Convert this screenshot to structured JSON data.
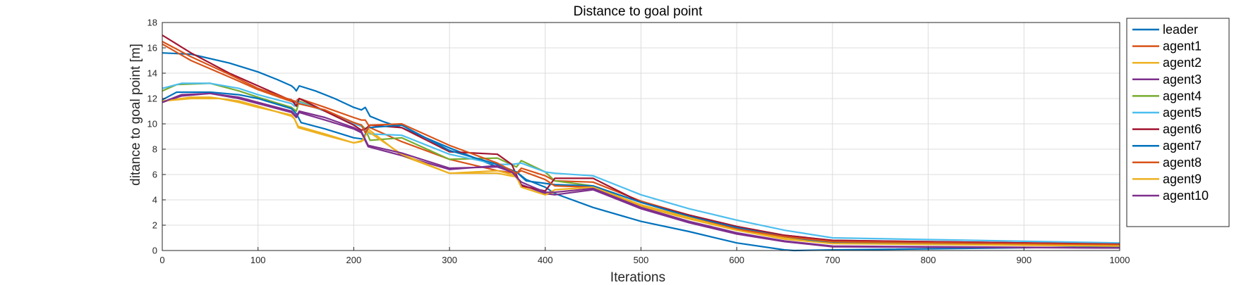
{
  "chart_data": {
    "type": "line",
    "title": "Distance to goal point",
    "xlabel": "Iterations",
    "ylabel": "ditance to goal point [m]",
    "xlim": [
      0,
      1000
    ],
    "ylim": [
      0,
      18
    ],
    "xticks": [
      "0",
      "100",
      "200",
      "300",
      "400",
      "500",
      "600",
      "700",
      "800",
      "900",
      "1000"
    ],
    "yticks": [
      "0",
      "2",
      "4",
      "6",
      "8",
      "10",
      "12",
      "14",
      "16",
      "18"
    ],
    "grid": true,
    "legend_position": "outside-right",
    "series": [
      {
        "name": "leader",
        "color": "#0072BD",
        "points": [
          [
            0,
            15.6
          ],
          [
            30,
            15.5
          ],
          [
            70,
            14.8
          ],
          [
            100,
            14.1
          ],
          [
            120,
            13.5
          ],
          [
            135,
            13.0
          ],
          [
            138,
            12.8
          ],
          [
            140,
            12.6
          ],
          [
            143,
            13.0
          ],
          [
            160,
            12.6
          ],
          [
            180,
            12.0
          ],
          [
            200,
            11.3
          ],
          [
            208,
            11.1
          ],
          [
            212,
            11.3
          ],
          [
            217,
            10.6
          ],
          [
            230,
            10.2
          ],
          [
            250,
            9.7
          ],
          [
            300,
            8.1
          ],
          [
            350,
            6.6
          ],
          [
            370,
            6.2
          ],
          [
            380,
            5.6
          ],
          [
            400,
            5.0
          ],
          [
            410,
            4.5
          ],
          [
            450,
            3.4
          ],
          [
            500,
            2.3
          ],
          [
            550,
            1.5
          ],
          [
            600,
            0.6
          ],
          [
            650,
            0.05
          ],
          [
            660,
            0.0
          ],
          [
            700,
            0.05
          ],
          [
            1000,
            0.3
          ]
        ]
      },
      {
        "name": "agent1",
        "color": "#D95319",
        "points": [
          [
            0,
            16.3
          ],
          [
            30,
            15.0
          ],
          [
            70,
            13.7
          ],
          [
            100,
            12.7
          ],
          [
            130,
            11.9
          ],
          [
            138,
            11.7
          ],
          [
            143,
            12.0
          ],
          [
            170,
            11.3
          ],
          [
            200,
            10.5
          ],
          [
            208,
            10.3
          ],
          [
            212,
            10.3
          ],
          [
            217,
            9.7
          ],
          [
            250,
            8.6
          ],
          [
            300,
            7.2
          ],
          [
            350,
            6.3
          ],
          [
            370,
            6.1
          ],
          [
            375,
            6.5
          ],
          [
            400,
            5.9
          ],
          [
            410,
            5.5
          ],
          [
            450,
            5.4
          ],
          [
            500,
            3.9
          ],
          [
            550,
            2.8
          ],
          [
            600,
            1.9
          ],
          [
            650,
            1.2
          ],
          [
            700,
            0.8
          ],
          [
            1000,
            0.5
          ]
        ]
      },
      {
        "name": "agent2",
        "color": "#EDB120",
        "points": [
          [
            0,
            11.8
          ],
          [
            30,
            12.1
          ],
          [
            50,
            12.1
          ],
          [
            80,
            11.8
          ],
          [
            100,
            11.4
          ],
          [
            135,
            10.6
          ],
          [
            138,
            10.4
          ],
          [
            142,
            9.8
          ],
          [
            170,
            9.2
          ],
          [
            200,
            8.5
          ],
          [
            210,
            8.7
          ],
          [
            215,
            9.6
          ],
          [
            250,
            7.5
          ],
          [
            300,
            6.1
          ],
          [
            350,
            6.3
          ],
          [
            370,
            5.9
          ],
          [
            375,
            5.0
          ],
          [
            400,
            4.4
          ],
          [
            410,
            4.6
          ],
          [
            450,
            4.9
          ],
          [
            500,
            3.5
          ],
          [
            550,
            2.5
          ],
          [
            600,
            1.6
          ],
          [
            650,
            1.0
          ],
          [
            700,
            0.6
          ],
          [
            1000,
            0.4
          ]
        ]
      },
      {
        "name": "agent3",
        "color": "#7E2F8E",
        "points": [
          [
            0,
            11.7
          ],
          [
            20,
            12.2
          ],
          [
            50,
            12.4
          ],
          [
            80,
            12.0
          ],
          [
            100,
            11.6
          ],
          [
            135,
            10.9
          ],
          [
            140,
            10.5
          ],
          [
            143,
            10.9
          ],
          [
            170,
            10.3
          ],
          [
            200,
            9.6
          ],
          [
            208,
            9.3
          ],
          [
            215,
            8.2
          ],
          [
            250,
            7.5
          ],
          [
            300,
            6.4
          ],
          [
            350,
            6.7
          ],
          [
            365,
            6.3
          ],
          [
            375,
            5.2
          ],
          [
            400,
            4.5
          ],
          [
            410,
            4.4
          ],
          [
            450,
            4.8
          ],
          [
            500,
            3.3
          ],
          [
            550,
            2.2
          ],
          [
            600,
            1.3
          ],
          [
            650,
            0.7
          ],
          [
            700,
            0.3
          ],
          [
            1000,
            0.2
          ]
        ]
      },
      {
        "name": "agent4",
        "color": "#77AC30",
        "points": [
          [
            0,
            12.6
          ],
          [
            15,
            13.1
          ],
          [
            50,
            13.2
          ],
          [
            80,
            12.6
          ],
          [
            100,
            12.1
          ],
          [
            135,
            11.3
          ],
          [
            140,
            11.0
          ],
          [
            143,
            11.8
          ],
          [
            170,
            11.0
          ],
          [
            200,
            10.1
          ],
          [
            208,
            9.9
          ],
          [
            212,
            9.6
          ],
          [
            217,
            8.7
          ],
          [
            250,
            8.9
          ],
          [
            300,
            7.2
          ],
          [
            350,
            7.3
          ],
          [
            370,
            6.6
          ],
          [
            375,
            7.1
          ],
          [
            400,
            6.2
          ],
          [
            410,
            5.5
          ],
          [
            450,
            5.1
          ],
          [
            500,
            3.8
          ],
          [
            550,
            2.7
          ],
          [
            600,
            1.8
          ],
          [
            650,
            1.1
          ],
          [
            700,
            0.7
          ],
          [
            1000,
            0.5
          ]
        ]
      },
      {
        "name": "agent5",
        "color": "#4DBEEE",
        "points": [
          [
            0,
            12.8
          ],
          [
            20,
            13.2
          ],
          [
            50,
            13.2
          ],
          [
            80,
            12.8
          ],
          [
            100,
            12.3
          ],
          [
            135,
            11.6
          ],
          [
            138,
            11.4
          ],
          [
            140,
            11.8
          ],
          [
            170,
            11.0
          ],
          [
            200,
            10.0
          ],
          [
            208,
            9.8
          ],
          [
            212,
            9.5
          ],
          [
            217,
            9.2
          ],
          [
            250,
            9.1
          ],
          [
            300,
            7.6
          ],
          [
            350,
            6.8
          ],
          [
            365,
            6.8
          ],
          [
            375,
            6.9
          ],
          [
            400,
            6.2
          ],
          [
            410,
            6.1
          ],
          [
            450,
            5.9
          ],
          [
            500,
            4.4
          ],
          [
            550,
            3.3
          ],
          [
            600,
            2.4
          ],
          [
            650,
            1.6
          ],
          [
            700,
            1.0
          ],
          [
            1000,
            0.6
          ]
        ]
      },
      {
        "name": "agent6",
        "color": "#A2142F",
        "points": [
          [
            0,
            17.0
          ],
          [
            30,
            15.6
          ],
          [
            70,
            14.0
          ],
          [
            100,
            13.0
          ],
          [
            130,
            12.0
          ],
          [
            135,
            11.9
          ],
          [
            140,
            11.4
          ],
          [
            143,
            12.0
          ],
          [
            170,
            11.0
          ],
          [
            200,
            9.9
          ],
          [
            208,
            9.5
          ],
          [
            212,
            9.6
          ],
          [
            217,
            9.9
          ],
          [
            250,
            9.7
          ],
          [
            300,
            7.8
          ],
          [
            350,
            7.6
          ],
          [
            365,
            6.8
          ],
          [
            375,
            5.1
          ],
          [
            400,
            4.7
          ],
          [
            410,
            5.7
          ],
          [
            450,
            5.7
          ],
          [
            500,
            3.8
          ],
          [
            550,
            2.8
          ],
          [
            600,
            1.9
          ],
          [
            650,
            1.2
          ],
          [
            700,
            0.8
          ],
          [
            1000,
            0.5
          ]
        ]
      },
      {
        "name": "agent7",
        "color": "#0072BD",
        "points": [
          [
            0,
            11.9
          ],
          [
            15,
            12.5
          ],
          [
            50,
            12.5
          ],
          [
            80,
            12.3
          ],
          [
            100,
            12.0
          ],
          [
            135,
            11.2
          ],
          [
            140,
            10.8
          ],
          [
            145,
            10.1
          ],
          [
            170,
            9.6
          ],
          [
            200,
            8.9
          ],
          [
            210,
            8.8
          ],
          [
            215,
            9.7
          ],
          [
            250,
            9.9
          ],
          [
            300,
            7.9
          ],
          [
            350,
            6.8
          ],
          [
            370,
            6.2
          ],
          [
            380,
            5.5
          ],
          [
            400,
            5.3
          ],
          [
            410,
            5.2
          ],
          [
            450,
            5.1
          ],
          [
            500,
            3.8
          ],
          [
            550,
            2.7
          ],
          [
            600,
            1.8
          ],
          [
            650,
            1.1
          ],
          [
            700,
            0.6
          ],
          [
            1000,
            0.4
          ]
        ]
      },
      {
        "name": "agent8",
        "color": "#D95319",
        "points": [
          [
            0,
            16.5
          ],
          [
            30,
            15.3
          ],
          [
            70,
            13.9
          ],
          [
            100,
            12.8
          ],
          [
            130,
            12.0
          ],
          [
            138,
            11.8
          ],
          [
            142,
            11.6
          ],
          [
            170,
            11.1
          ],
          [
            200,
            10.1
          ],
          [
            208,
            9.9
          ],
          [
            212,
            9.3
          ],
          [
            217,
            9.9
          ],
          [
            250,
            10.0
          ],
          [
            300,
            8.3
          ],
          [
            350,
            6.9
          ],
          [
            370,
            6.1
          ],
          [
            375,
            6.3
          ],
          [
            400,
            5.6
          ],
          [
            410,
            5.1
          ],
          [
            450,
            5.0
          ],
          [
            500,
            3.6
          ],
          [
            550,
            2.6
          ],
          [
            600,
            1.7
          ],
          [
            650,
            1.1
          ],
          [
            700,
            0.7
          ],
          [
            1000,
            0.45
          ]
        ]
      },
      {
        "name": "agent9",
        "color": "#EDB120",
        "points": [
          [
            0,
            11.8
          ],
          [
            30,
            12.0
          ],
          [
            60,
            12.0
          ],
          [
            80,
            11.7
          ],
          [
            100,
            11.3
          ],
          [
            135,
            10.7
          ],
          [
            138,
            10.4
          ],
          [
            142,
            9.7
          ],
          [
            170,
            9.1
          ],
          [
            200,
            8.5
          ],
          [
            208,
            8.6
          ],
          [
            215,
            9.4
          ],
          [
            250,
            7.6
          ],
          [
            300,
            6.1
          ],
          [
            350,
            6.1
          ],
          [
            370,
            5.8
          ],
          [
            375,
            5.0
          ],
          [
            400,
            4.4
          ],
          [
            410,
            4.8
          ],
          [
            450,
            5.0
          ],
          [
            500,
            3.6
          ],
          [
            550,
            2.6
          ],
          [
            600,
            1.6
          ],
          [
            650,
            0.9
          ],
          [
            700,
            0.55
          ],
          [
            1000,
            0.35
          ]
        ]
      },
      {
        "name": "agent10",
        "color": "#7E2F8E",
        "points": [
          [
            0,
            11.7
          ],
          [
            20,
            12.3
          ],
          [
            50,
            12.4
          ],
          [
            80,
            12.1
          ],
          [
            100,
            11.7
          ],
          [
            135,
            11.0
          ],
          [
            140,
            10.6
          ],
          [
            143,
            11.0
          ],
          [
            170,
            10.5
          ],
          [
            200,
            9.7
          ],
          [
            208,
            9.4
          ],
          [
            215,
            8.3
          ],
          [
            250,
            7.7
          ],
          [
            300,
            6.5
          ],
          [
            350,
            6.6
          ],
          [
            365,
            6.2
          ],
          [
            375,
            5.4
          ],
          [
            400,
            4.6
          ],
          [
            410,
            4.6
          ],
          [
            450,
            4.9
          ],
          [
            500,
            3.4
          ],
          [
            550,
            2.3
          ],
          [
            600,
            1.4
          ],
          [
            650,
            0.75
          ],
          [
            700,
            0.35
          ],
          [
            1000,
            0.2
          ]
        ]
      }
    ]
  }
}
